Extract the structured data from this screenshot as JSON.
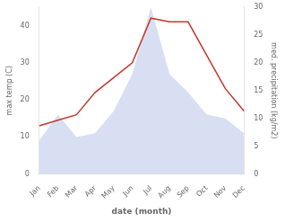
{
  "chart_data": {
    "type": "line",
    "xlabel": "date (month)",
    "ylabel": "max temp (C)",
    "y2label": "med. precipitation (kg/m2)",
    "categories": [
      "Jan",
      "Feb",
      "Mar",
      "Apr",
      "May",
      "Jun",
      "Jul",
      "Aug",
      "Sep",
      "Oct",
      "Nov",
      "Dec"
    ],
    "series": [
      {
        "type": "area",
        "color": "#b8c4e8",
        "values": [
          9,
          16,
          10,
          11,
          17,
          27,
          45,
          27,
          22,
          16,
          15,
          11
        ]
      },
      {
        "type": "line",
        "color": "#c0392b",
        "values": [
          13,
          14.5,
          16,
          22,
          26,
          30,
          42,
          41,
          41,
          32,
          23,
          17
        ]
      }
    ],
    "ylim": [
      0,
      45
    ],
    "yticks": [
      0,
      10,
      20,
      30,
      40
    ],
    "y2lim": [
      0,
      30
    ],
    "y2ticks": [
      0,
      5,
      10,
      15,
      20,
      25,
      30
    ],
    "grid": false
  }
}
